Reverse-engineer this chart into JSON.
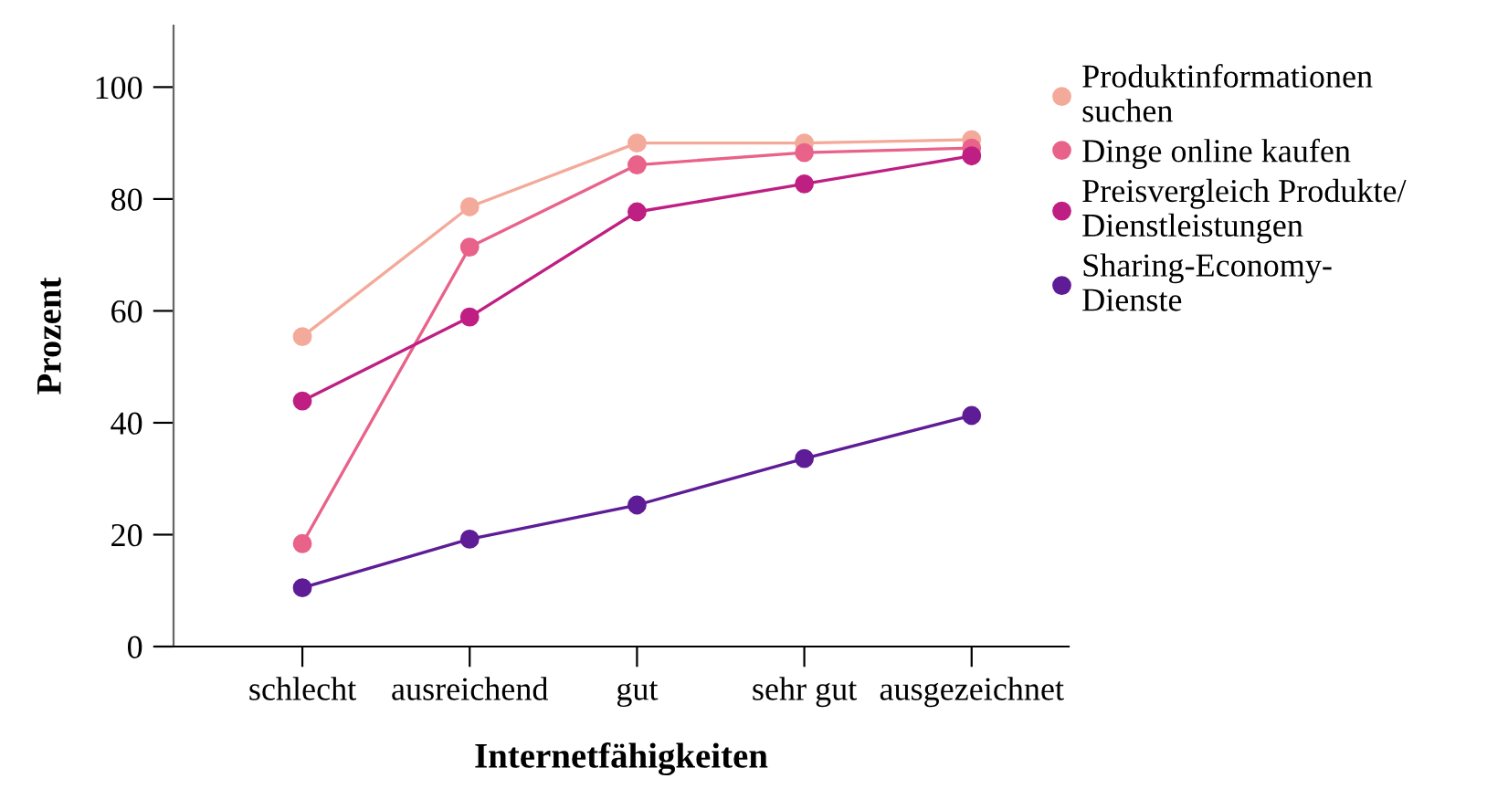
{
  "chart_data": {
    "type": "line",
    "xlabel": "Internetfähigkeiten",
    "ylabel": "Prozent",
    "categories": [
      "schlecht",
      "ausreichend",
      "gut",
      "sehr gut",
      "ausgezeichnet"
    ],
    "series": [
      {
        "name": "Produktinformationen\nsuchen",
        "color": "#f4aa9a",
        "values": [
          55.4,
          78.6,
          90.0,
          90.0,
          90.6
        ]
      },
      {
        "name": "Dinge online kaufen",
        "color": "#e8628a",
        "values": [
          18.4,
          71.4,
          86.1,
          88.3,
          89.1
        ]
      },
      {
        "name": "Preisvergleich Produkte/\nDienstleistungen",
        "color": "#bf1f82",
        "values": [
          43.9,
          58.9,
          77.7,
          82.7,
          87.7
        ]
      },
      {
        "name": "Sharing-Economy-\nDienste",
        "color": "#5e1c96",
        "values": [
          10.5,
          19.2,
          25.3,
          33.6,
          41.3
        ]
      }
    ],
    "ylim": [
      0,
      111
    ],
    "yticks": [
      0,
      20,
      40,
      60,
      80,
      100
    ],
    "grid": false,
    "legend": "top right",
    "marker": "circle",
    "line_style": "solid"
  }
}
